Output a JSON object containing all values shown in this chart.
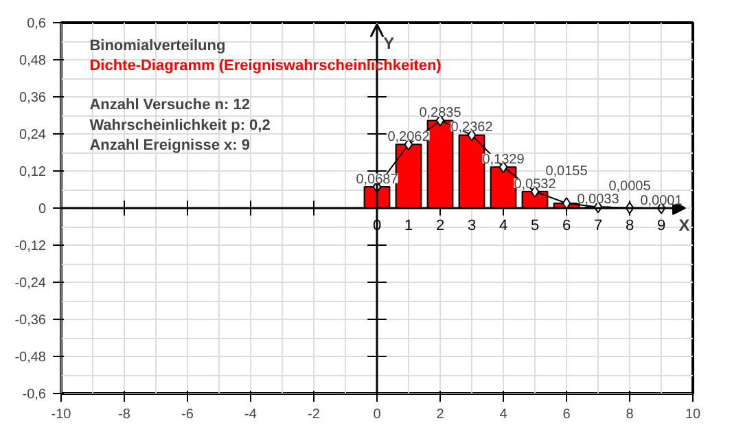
{
  "chart_data": {
    "type": "bar",
    "title": "Binomialverteilung",
    "subtitle": "Dichte-Diagramm (Ereigniswahrscheinlichkeiten)",
    "annotations": [
      "Anzahl Versuche n: 12",
      "Wahrscheinlichkeit p: 0,2",
      "Anzahl Ereignisse x: 9"
    ],
    "xlabel": "X",
    "ylabel": "Y",
    "x": [
      0,
      1,
      2,
      3,
      4,
      5,
      6,
      7,
      8,
      9
    ],
    "x2lim": [
      -10,
      10
    ],
    "x2ticks": [
      0,
      1,
      2,
      3,
      4,
      5,
      6,
      7,
      8,
      9
    ],
    "series": [
      {
        "color": "#ff0000",
        "values": [
          0.0687,
          0.2062,
          0.2835,
          0.2362,
          0.1329,
          0.0532,
          0.0155,
          0.0033,
          0.0005,
          0.0001
        ],
        "value_labels": [
          "0,0687",
          "0,2062",
          "0,2835",
          "0,2362",
          "0,1329",
          "0,0532",
          "0,0155",
          "0,0033",
          "0,0005",
          "0,0001"
        ]
      },
      {
        "type": "line",
        "color": "#000000",
        "marker": "diamond",
        "values": [
          0.0687,
          0.2062,
          0.2835,
          0.2362,
          0.1329,
          0.0532,
          0.0155,
          0.0033,
          0.0005,
          0.0001
        ]
      }
    ],
    "xlim": [
      -10,
      10
    ],
    "xticks": [
      -10,
      -8,
      -6,
      -4,
      -2,
      0,
      2,
      4,
      6,
      8,
      10
    ],
    "ylim": [
      -0.6,
      0.6
    ],
    "yticks": [
      {
        "value": -0.6,
        "label": "-0,6"
      },
      {
        "value": -0.48,
        "label": "-0,48"
      },
      {
        "value": -0.36,
        "label": "-0,36"
      },
      {
        "value": -0.24,
        "label": "-0,24"
      },
      {
        "value": -0.12,
        "label": "-0,12"
      },
      0,
      {
        "value": 0.12,
        "label": "0,12"
      },
      {
        "value": 0.24,
        "label": "0,24"
      },
      {
        "value": 0.36,
        "label": "0,36"
      },
      {
        "value": 0.48,
        "label": "0,48"
      },
      {
        "value": 0.6,
        "label": "0,6"
      }
    ],
    "grid": true
  }
}
